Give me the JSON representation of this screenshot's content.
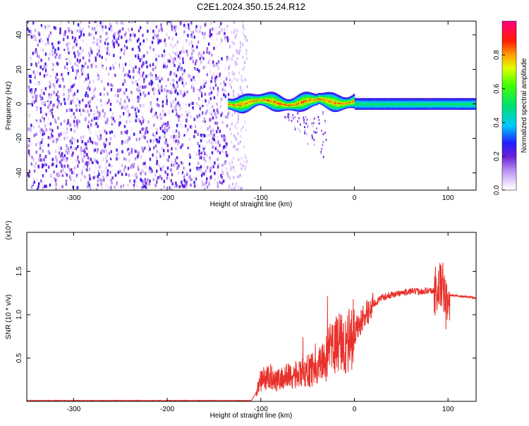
{
  "title": "C2E1.2024.350.15.24.R12",
  "chart_data": [
    {
      "type": "heatmap",
      "name": "spectrogram",
      "xlabel": "Height of straight line (km)",
      "ylabel": "Frequency (Hz)",
      "xlim": [
        -350,
        130
      ],
      "ylim": [
        -50,
        48
      ],
      "x_ticks": [
        -300,
        -200,
        -100,
        0,
        100
      ],
      "y_ticks": [
        -40,
        -20,
        0,
        20,
        40
      ],
      "colorbar": {
        "label": "Normalized spectral amplitude",
        "range": [
          0.0,
          1.0
        ],
        "ticks": [
          0.0,
          0.2,
          0.4,
          0.6,
          0.8
        ],
        "colormap": "rainbow (white-violet-blue-cyan-green-yellow-red-magenta)"
      },
      "regions": [
        {
          "x_range": [
            -350,
            -135
          ],
          "description": "scattered noise",
          "amplitude": [
            0.0,
            0.15
          ]
        },
        {
          "x_range": [
            -135,
            0
          ],
          "center_frequency": 1,
          "band_halfwidth": 4,
          "amplitude": [
            0.2,
            0.9
          ]
        },
        {
          "x_range": [
            0,
            130
          ],
          "center_frequency": 0,
          "band_halfwidth": 3,
          "amplitude": [
            0.4,
            0.6
          ]
        }
      ]
    },
    {
      "type": "line",
      "name": "snr",
      "xlabel": "Height of straight line (km)",
      "ylabel": "SNR (10 * v/v)",
      "y_multiplier": "(x10⁴)",
      "xlim": [
        -350,
        130
      ],
      "ylim": [
        0,
        1.95
      ],
      "x_ticks": [
        -300,
        -200,
        -100,
        0,
        100
      ],
      "y_ticks": [
        0.5,
        1.0,
        1.5
      ],
      "color": "#e8302a",
      "series": [
        {
          "x": [
            -350,
            -300,
            -250,
            -200,
            -150,
            -110,
            -105,
            -100,
            -90,
            -80,
            -70,
            -60,
            -50,
            -40,
            -30,
            -25,
            -20,
            -15,
            -10,
            -5,
            0,
            10,
            20,
            30,
            40,
            50,
            60,
            70,
            80,
            85,
            90,
            93,
            96,
            98,
            100,
            102,
            105,
            110,
            115,
            120,
            125,
            130
          ],
          "y": [
            0.01,
            0.01,
            0.01,
            0.01,
            0.01,
            0.01,
            0.1,
            0.25,
            0.28,
            0.25,
            0.3,
            0.3,
            0.35,
            0.4,
            0.5,
            0.6,
            0.65,
            0.7,
            0.6,
            0.72,
            0.8,
            0.97,
            1.12,
            1.2,
            1.23,
            1.25,
            1.27,
            1.27,
            1.28,
            1.27,
            1.3,
            1.35,
            1.28,
            1.05,
            1.25,
            1.23,
            1.22,
            1.22,
            1.21,
            1.21,
            1.2,
            1.19
          ]
        }
      ]
    }
  ]
}
